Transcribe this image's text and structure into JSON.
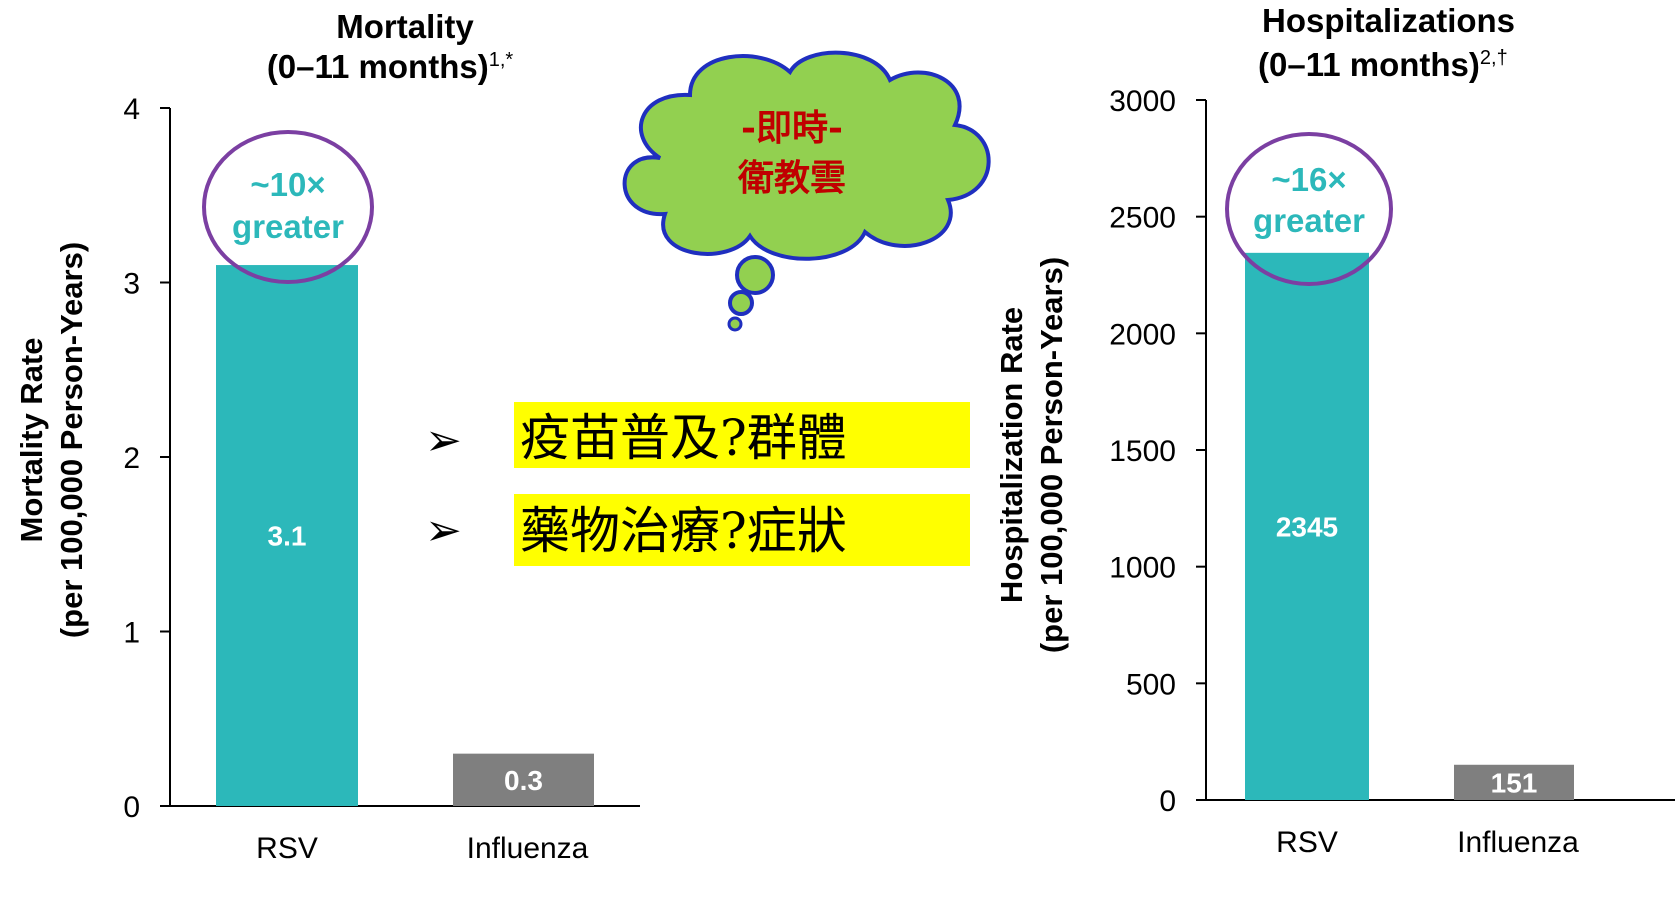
{
  "colors": {
    "rsv": "#2CB8BA",
    "influenza": "#7F7F7F",
    "highlight_circle": "#7B3FA2",
    "callout_text": "#2CB8BA",
    "cloud_fill": "#92D050",
    "cloud_stroke": "#1F2FBF",
    "cloud_text": "#C00000",
    "highlight_bg": "#FFFF00",
    "axis": "#000000"
  },
  "cloud": {
    "line1": "-即時-",
    "line2": "衛教雲"
  },
  "bullets": [
    {
      "marker": "➢",
      "text": "疫苗普及?群體"
    },
    {
      "marker": "➢",
      "text": "藥物治療?症狀"
    }
  ],
  "chart_data": [
    {
      "type": "bar",
      "title": "Mortality",
      "subtitle": "(0–11 months)",
      "title_superscript": "1,*",
      "ylabel_line1": "Mortality Rate",
      "ylabel_line2": "(per 100,000 Person-Years)",
      "categories": [
        "RSV",
        "Influenza"
      ],
      "values": [
        3.1,
        0.3
      ],
      "value_labels": [
        "3.1",
        "0.3"
      ],
      "ylim": [
        0,
        4
      ],
      "yticks": [
        0,
        1,
        2,
        3,
        4
      ],
      "callout": {
        "line1": "~10×",
        "line2": "greater"
      },
      "grid": false
    },
    {
      "type": "bar",
      "title": "Hospitalizations",
      "subtitle": "(0–11 months)",
      "title_superscript": "2,†",
      "ylabel_line1": "Hospitalization Rate",
      "ylabel_line2": "(per 100,000 Person-Years)",
      "categories": [
        "RSV",
        "Influenza"
      ],
      "values": [
        2345,
        151
      ],
      "value_labels": [
        "2345",
        "151"
      ],
      "ylim": [
        0,
        3000
      ],
      "yticks": [
        0,
        500,
        1000,
        1500,
        2000,
        2500,
        3000
      ],
      "callout": {
        "line1": "~16×",
        "line2": "greater"
      },
      "grid": false
    }
  ]
}
